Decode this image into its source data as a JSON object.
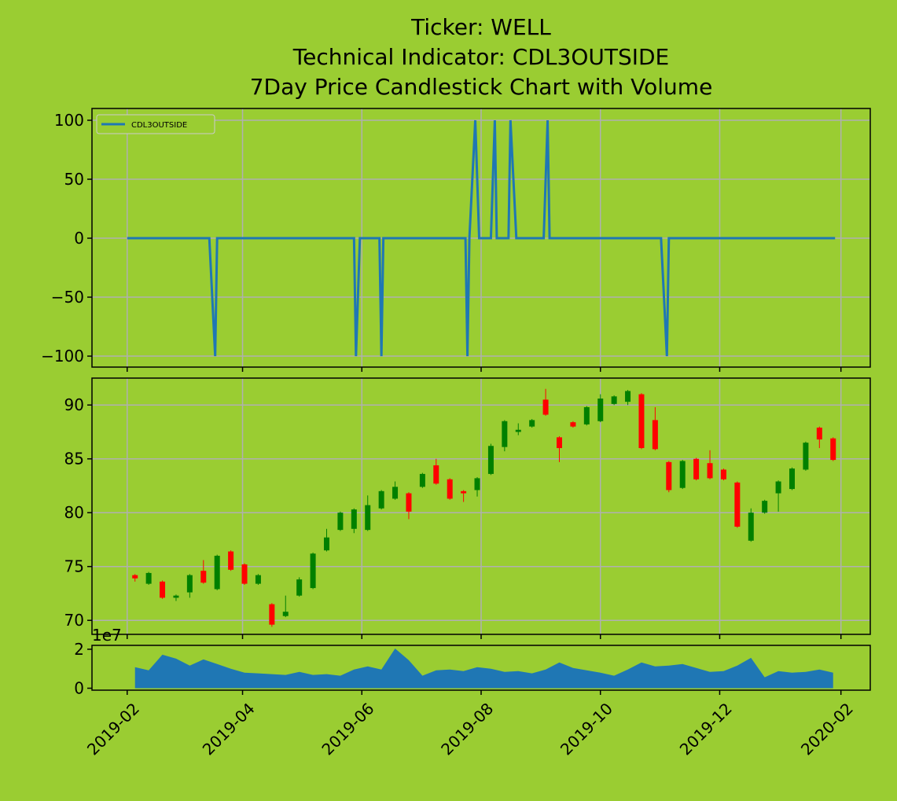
{
  "title": [
    "Ticker: WELL",
    "Technical Indicator: CDL3OUTSIDE",
    "7Day Price Candlestick Chart with Volume"
  ],
  "chart_data": [
    {
      "type": "line",
      "series": [
        {
          "name": "CDL3OUTSIDE",
          "color": "#1f77b4",
          "x": [
            "2019-02-01",
            "2019-03-15",
            "2019-03-18",
            "2019-03-19",
            "2019-05-28",
            "2019-05-29",
            "2019-05-31",
            "2019-06-10",
            "2019-06-11",
            "2019-06-12",
            "2019-07-24",
            "2019-07-25",
            "2019-07-26",
            "2019-07-29",
            "2019-07-31",
            "2019-08-06",
            "2019-08-08",
            "2019-08-09",
            "2019-08-15",
            "2019-08-16",
            "2019-08-19",
            "2019-09-02",
            "2019-09-04",
            "2019-09-05",
            "2019-11-01",
            "2019-11-04",
            "2019-11-05",
            "2020-01-29"
          ],
          "values": [
            0,
            0,
            -100,
            0,
            0,
            -100,
            0,
            0,
            -100,
            0,
            0,
            -100,
            0,
            100,
            0,
            0,
            100,
            0,
            0,
            100,
            0,
            0,
            100,
            0,
            0,
            -100,
            0,
            0
          ]
        }
      ],
      "xlim": [
        "2019-01-14",
        "2020-02-16"
      ],
      "xticks": [
        "2019-02-01",
        "2019-04-01",
        "2019-06-01",
        "2019-08-01",
        "2019-10-01",
        "2019-12-01",
        "2020-02-01"
      ],
      "ylim": [
        -109.3,
        110
      ],
      "yticks": [
        {
          "value": -100,
          "label": "−100"
        },
        {
          "value": -50,
          "label": "−50"
        },
        0,
        50,
        100
      ],
      "grid": true,
      "legend": "upper left"
    },
    {
      "type": "candlestick",
      "x": [
        "2019-02-05",
        "2019-02-12",
        "2019-02-19",
        "2019-02-26",
        "2019-03-05",
        "2019-03-12",
        "2019-03-19",
        "2019-03-26",
        "2019-04-02",
        "2019-04-09",
        "2019-04-16",
        "2019-04-23",
        "2019-04-30",
        "2019-05-07",
        "2019-05-14",
        "2019-05-21",
        "2019-05-28",
        "2019-06-04",
        "2019-06-11",
        "2019-06-18",
        "2019-06-25",
        "2019-07-02",
        "2019-07-09",
        "2019-07-16",
        "2019-07-23",
        "2019-07-30",
        "2019-08-06",
        "2019-08-13",
        "2019-08-20",
        "2019-08-27",
        "2019-09-03",
        "2019-09-10",
        "2019-09-17",
        "2019-09-24",
        "2019-10-01",
        "2019-10-08",
        "2019-10-15",
        "2019-10-22",
        "2019-10-29",
        "2019-11-05",
        "2019-11-12",
        "2019-11-19",
        "2019-11-26",
        "2019-12-03",
        "2019-12-10",
        "2019-12-17",
        "2019-12-24",
        "2019-12-31",
        "2020-01-07",
        "2020-01-14",
        "2020-01-21",
        "2020-01-28"
      ],
      "open": [
        74.2,
        73.4,
        73.6,
        72.1,
        72.6,
        74.6,
        72.9,
        76.4,
        75.2,
        73.4,
        71.5,
        70.4,
        72.3,
        73.0,
        76.5,
        78.4,
        78.5,
        78.4,
        80.4,
        81.3,
        81.8,
        82.4,
        84.4,
        83.1,
        82.0,
        82.1,
        83.6,
        86.1,
        87.5,
        88.0,
        90.5,
        87.0,
        88.4,
        88.2,
        88.5,
        90.1,
        90.3,
        91.0,
        88.6,
        84.7,
        82.3,
        85.0,
        84.6,
        84.0,
        82.8,
        77.4,
        80.0,
        81.8,
        82.2,
        84.0,
        87.9,
        86.9
      ],
      "high": [
        74.3,
        74.5,
        73.7,
        72.4,
        74.3,
        75.6,
        76.1,
        76.5,
        75.3,
        74.3,
        71.6,
        72.3,
        74.0,
        76.3,
        78.5,
        80.1,
        80.4,
        81.6,
        82.1,
        82.9,
        81.9,
        83.7,
        85.0,
        83.2,
        82.1,
        83.3,
        86.4,
        88.6,
        88.3,
        88.7,
        91.5,
        87.1,
        88.5,
        89.9,
        91.0,
        90.9,
        91.4,
        91.1,
        89.8,
        84.8,
        84.9,
        85.1,
        85.8,
        84.1,
        82.9,
        80.4,
        81.2,
        83.0,
        84.2,
        86.6,
        88.0,
        87.0
      ],
      "low": [
        73.6,
        73.3,
        72.0,
        71.8,
        72.1,
        73.4,
        72.8,
        74.6,
        73.3,
        73.3,
        69.4,
        70.3,
        72.2,
        72.9,
        76.4,
        78.3,
        78.1,
        78.3,
        80.3,
        81.2,
        79.4,
        82.3,
        82.6,
        81.2,
        81.0,
        81.5,
        83.5,
        85.7,
        87.2,
        87.9,
        89.0,
        84.7,
        87.9,
        88.1,
        88.4,
        90.0,
        90.0,
        85.9,
        85.8,
        81.9,
        82.2,
        83.0,
        83.1,
        83.0,
        78.6,
        77.3,
        79.9,
        80.1,
        82.1,
        83.9,
        86.0,
        84.8
      ],
      "close": [
        73.9,
        74.4,
        72.1,
        72.3,
        74.2,
        73.5,
        76.0,
        74.7,
        73.4,
        74.2,
        69.6,
        70.8,
        73.8,
        76.2,
        77.7,
        80.0,
        80.3,
        80.7,
        82.0,
        82.4,
        80.1,
        83.6,
        82.7,
        81.3,
        81.8,
        83.2,
        86.2,
        88.5,
        87.7,
        88.6,
        89.1,
        86.0,
        88.0,
        89.8,
        90.6,
        90.8,
        91.3,
        86.0,
        85.9,
        82.1,
        84.8,
        83.1,
        83.2,
        83.1,
        78.7,
        80.0,
        81.1,
        82.9,
        84.1,
        86.5,
        86.8,
        84.9
      ],
      "up_color": "green",
      "down_color": "red",
      "xlim": [
        "2019-01-14",
        "2020-02-16"
      ],
      "xticks": [
        "2019-02-01",
        "2019-04-01",
        "2019-06-01",
        "2019-08-01",
        "2019-10-01",
        "2019-12-01",
        "2020-02-01"
      ],
      "ylim": [
        68.7,
        92.5
      ],
      "yticks": [
        70,
        75,
        80,
        85,
        90
      ],
      "grid": true
    },
    {
      "type": "area",
      "x": [
        "2019-02-05",
        "2019-02-12",
        "2019-02-19",
        "2019-02-26",
        "2019-03-05",
        "2019-03-12",
        "2019-03-19",
        "2019-03-26",
        "2019-04-02",
        "2019-04-09",
        "2019-04-16",
        "2019-04-23",
        "2019-04-30",
        "2019-05-07",
        "2019-05-14",
        "2019-05-21",
        "2019-05-28",
        "2019-06-04",
        "2019-06-11",
        "2019-06-18",
        "2019-06-25",
        "2019-07-02",
        "2019-07-09",
        "2019-07-16",
        "2019-07-23",
        "2019-07-30",
        "2019-08-06",
        "2019-08-13",
        "2019-08-20",
        "2019-08-27",
        "2019-09-03",
        "2019-09-10",
        "2019-09-17",
        "2019-09-24",
        "2019-10-01",
        "2019-10-08",
        "2019-10-15",
        "2019-10-22",
        "2019-10-29",
        "2019-11-05",
        "2019-11-12",
        "2019-11-19",
        "2019-11-26",
        "2019-12-03",
        "2019-12-10",
        "2019-12-17",
        "2019-12-24",
        "2019-12-31",
        "2020-01-07",
        "2020-01-14",
        "2020-01-21",
        "2020-01-28"
      ],
      "values": [
        10800000,
        9200000,
        17200000,
        15200000,
        11600000,
        14800000,
        12400000,
        10000000,
        8000000,
        7600000,
        7200000,
        6800000,
        8400000,
        6800000,
        7200000,
        6400000,
        9600000,
        11200000,
        9600000,
        20400000,
        14400000,
        6400000,
        9200000,
        9600000,
        8800000,
        10800000,
        10000000,
        8400000,
        8800000,
        7600000,
        9600000,
        13200000,
        10400000,
        9200000,
        8000000,
        6400000,
        9600000,
        13200000,
        11200000,
        11600000,
        12400000,
        10400000,
        8400000,
        8800000,
        11600000,
        15600000,
        5600000,
        8800000,
        8000000,
        8400000,
        9600000,
        8000000
      ],
      "color": "#1f77b4",
      "xlim": [
        "2019-01-14",
        "2020-02-16"
      ],
      "xticks": [
        {
          "value": "2019-02-01",
          "label": "2019-02"
        },
        {
          "value": "2019-04-01",
          "label": "2019-04"
        },
        {
          "value": "2019-06-01",
          "label": "2019-06"
        },
        {
          "value": "2019-08-01",
          "label": "2019-08"
        },
        {
          "value": "2019-10-01",
          "label": "2019-10"
        },
        {
          "value": "2019-12-01",
          "label": "2019-12"
        },
        {
          "value": "2020-02-01",
          "label": "2020-02"
        }
      ],
      "ylim": [
        -1000000,
        22000000
      ],
      "yticks": [
        0,
        {
          "value": 20000000,
          "label": "2"
        }
      ],
      "y_offset_label": "1e7",
      "grid": false
    }
  ]
}
